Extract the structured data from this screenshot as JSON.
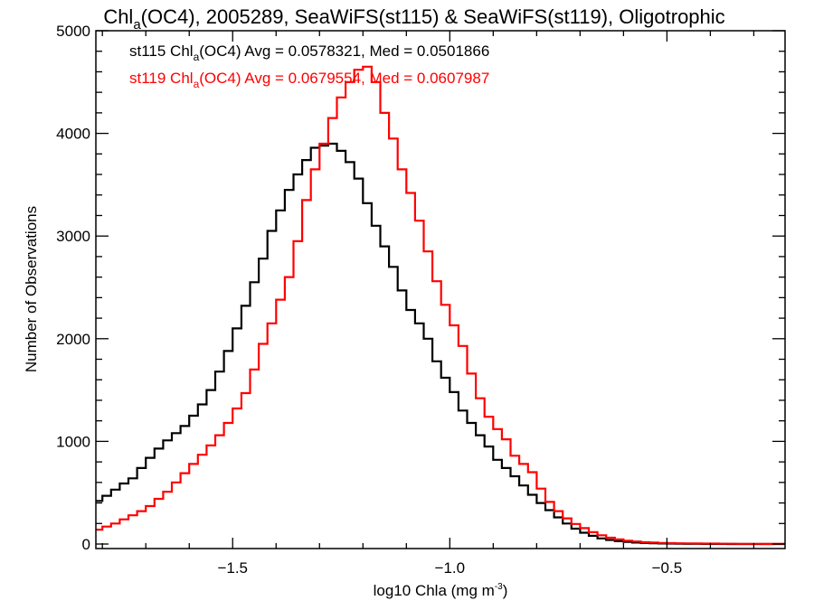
{
  "chart_data": {
    "type": "line",
    "style": "step-histogram",
    "title": "Chl_a(OC4), 2005289, SeaWiFS(st115) & SeaWiFS(st119), Oligotrophic",
    "title_parts": {
      "pre": "Chl",
      "sub": "a",
      "post": "(OC4), 2005289, SeaWiFS(st115) & SeaWiFS(st119), Oligotrophic"
    },
    "xlabel": "log10 Chla (mg m^-3)",
    "xlabel_parts": {
      "pre": "log10 Chla (mg m",
      "sup": "-3",
      "post": ")"
    },
    "ylabel": "Number of Observations",
    "xlim": [
      -1.815,
      -0.228
    ],
    "ylim": [
      0,
      5000
    ],
    "x_ticks": [
      -1.5,
      -1.0,
      -0.5
    ],
    "x_tick_labels": [
      "−1.5",
      "−1.0",
      "−0.5"
    ],
    "x_minor_step": 0.1,
    "y_ticks": [
      0,
      1000,
      2000,
      3000,
      4000,
      5000
    ],
    "y_tick_labels": [
      "0",
      "1000",
      "2000",
      "3000",
      "4000",
      "5000"
    ],
    "y_minor_step": 200,
    "grid": false,
    "legend_placement": "top-left",
    "bin_width": 0.02,
    "x": [
      -1.82,
      -1.8,
      -1.78,
      -1.76,
      -1.74,
      -1.72,
      -1.7,
      -1.68,
      -1.66,
      -1.64,
      -1.62,
      -1.6,
      -1.58,
      -1.56,
      -1.54,
      -1.52,
      -1.5,
      -1.48,
      -1.46,
      -1.44,
      -1.42,
      -1.4,
      -1.38,
      -1.36,
      -1.34,
      -1.32,
      -1.3,
      -1.28,
      -1.26,
      -1.24,
      -1.22,
      -1.2,
      -1.18,
      -1.16,
      -1.14,
      -1.12,
      -1.1,
      -1.08,
      -1.06,
      -1.04,
      -1.02,
      -1.0,
      -0.98,
      -0.96,
      -0.94,
      -0.92,
      -0.9,
      -0.88,
      -0.86,
      -0.84,
      -0.82,
      -0.8,
      -0.78,
      -0.76,
      -0.74,
      -0.72,
      -0.7,
      -0.68,
      -0.66,
      -0.64,
      -0.62,
      -0.6,
      -0.58,
      -0.56,
      -0.54,
      -0.52,
      -0.5,
      -0.48,
      -0.46,
      -0.44,
      -0.42,
      -0.4,
      -0.38,
      -0.36,
      -0.34,
      -0.32,
      -0.3,
      -0.28,
      -0.26,
      -0.24
    ],
    "series": [
      {
        "name": "st115",
        "color": "#000000",
        "legend": {
          "pre": "st115 Chl",
          "sub": "a",
          "post": "(OC4) Avg = 0.0578321, Med = 0.0501866"
        },
        "avg": 0.0578321,
        "median": 0.0501866,
        "values": [
          420,
          470,
          530,
          590,
          640,
          740,
          840,
          930,
          1010,
          1080,
          1150,
          1250,
          1360,
          1500,
          1680,
          1880,
          2100,
          2320,
          2550,
          2780,
          3050,
          3250,
          3450,
          3600,
          3740,
          3860,
          3880,
          3900,
          3830,
          3720,
          3560,
          3320,
          3100,
          2900,
          2700,
          2470,
          2280,
          2150,
          2000,
          1780,
          1620,
          1480,
          1300,
          1180,
          1060,
          950,
          820,
          740,
          660,
          570,
          480,
          400,
          330,
          260,
          200,
          150,
          110,
          80,
          55,
          40,
          28,
          20,
          14,
          10,
          7,
          5,
          4,
          3,
          2,
          2,
          1,
          1,
          1,
          0,
          0,
          0,
          0,
          0,
          0,
          0
        ]
      },
      {
        "name": "st119",
        "color": "#ff0000",
        "legend": {
          "pre": "st119 Chl",
          "sub": "a",
          "post": "(OC4) Avg = 0.0679554, Med = 0.0607987"
        },
        "avg": 0.0679554,
        "median": 0.0607987,
        "values": [
          140,
          170,
          200,
          240,
          280,
          320,
          370,
          440,
          510,
          600,
          690,
          780,
          870,
          960,
          1060,
          1180,
          1320,
          1470,
          1700,
          1950,
          2150,
          2380,
          2600,
          2950,
          3350,
          3650,
          3900,
          4150,
          4350,
          4500,
          4620,
          4650,
          4500,
          4200,
          3950,
          3650,
          3420,
          3150,
          2850,
          2560,
          2330,
          2130,
          1930,
          1660,
          1420,
          1240,
          1120,
          1020,
          860,
          780,
          700,
          540,
          410,
          320,
          250,
          195,
          155,
          115,
          85,
          62,
          45,
          33,
          25,
          18,
          14,
          11,
          9,
          7,
          6,
          5,
          4,
          4,
          3,
          3,
          2,
          2,
          2,
          1,
          1,
          1
        ]
      }
    ]
  }
}
